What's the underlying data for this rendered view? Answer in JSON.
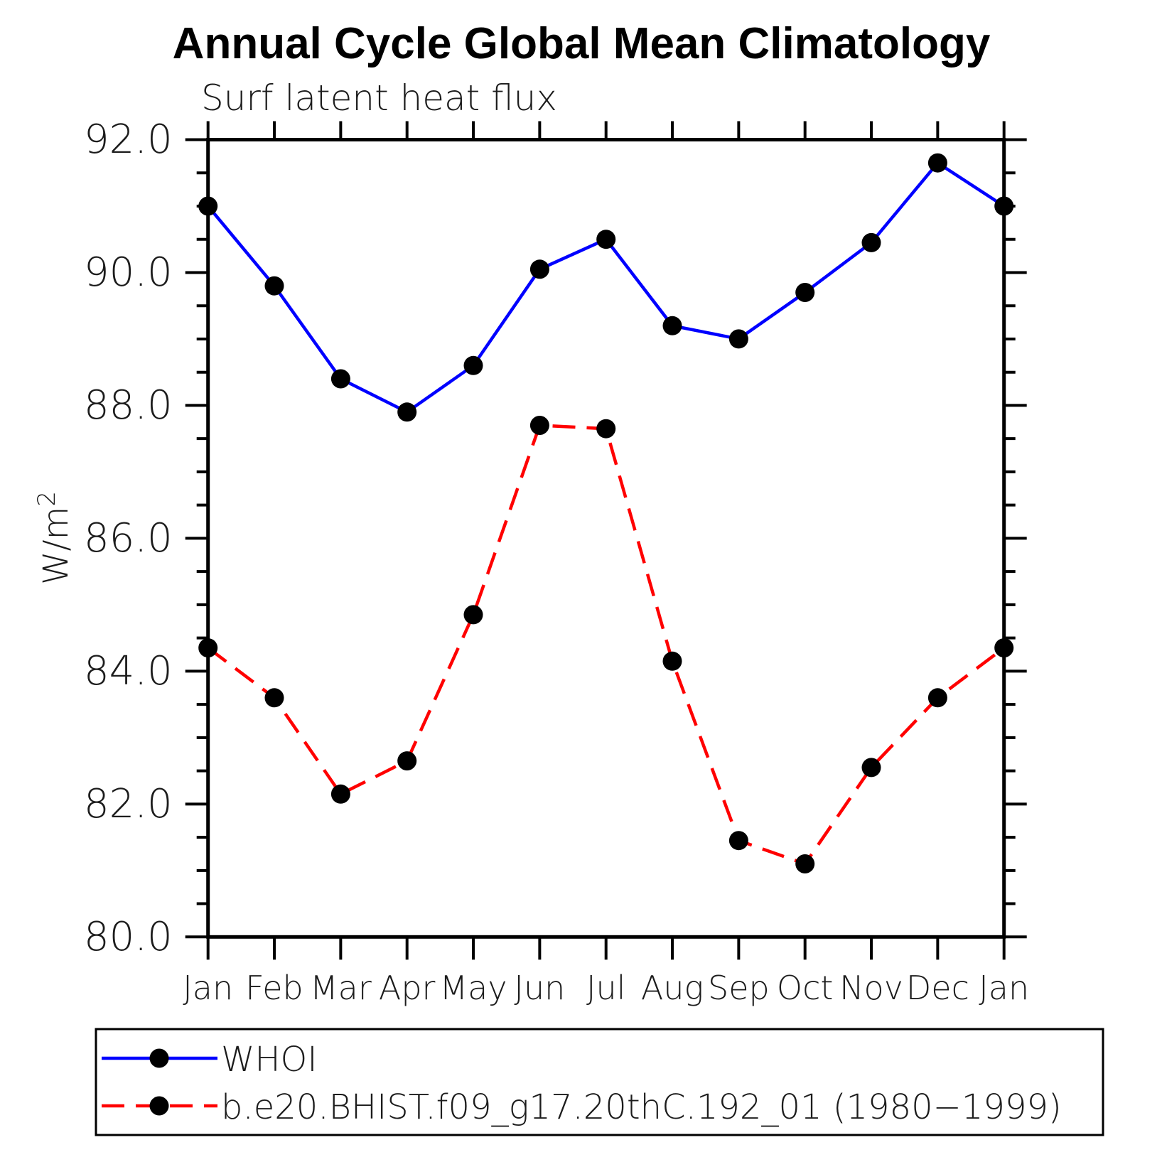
{
  "title": "Annual Cycle Global Mean Climatology",
  "subtitle": "Surf latent heat flux",
  "ylabel": {
    "text": "W/m",
    "sup": "2"
  },
  "chart_data": {
    "type": "line",
    "categories": [
      "Jan",
      "Feb",
      "Mar",
      "Apr",
      "May",
      "Jun",
      "Jul",
      "Aug",
      "Sep",
      "Oct",
      "Nov",
      "Dec",
      "Jan"
    ],
    "series": [
      {
        "name": "WHOI",
        "color": "#0000ff",
        "line_style": "solid",
        "marker": "circle",
        "marker_color": "#000000",
        "values": [
          91.0,
          89.8,
          88.4,
          87.9,
          88.6,
          90.05,
          90.5,
          89.2,
          89.0,
          89.7,
          90.45,
          91.65,
          91.0
        ]
      },
      {
        "name": "b.e20.BHIST.f09_g17.20thC.192_01 (1980−1999)",
        "color": "#ff0000",
        "line_style": "dashed",
        "marker": "circle",
        "marker_color": "#000000",
        "values": [
          84.35,
          83.6,
          82.15,
          82.65,
          84.85,
          87.7,
          87.65,
          84.15,
          81.45,
          81.1,
          82.55,
          83.6,
          84.35
        ]
      }
    ],
    "ylim": [
      80.0,
      92.0
    ],
    "y_major_step": 2.0,
    "y_minor_step": 0.5,
    "y_tick_labels": [
      "80.0",
      "82.0",
      "84.0",
      "86.0",
      "88.0",
      "90.0",
      "92.0"
    ],
    "grid": false,
    "legend_position": "bottom"
  }
}
